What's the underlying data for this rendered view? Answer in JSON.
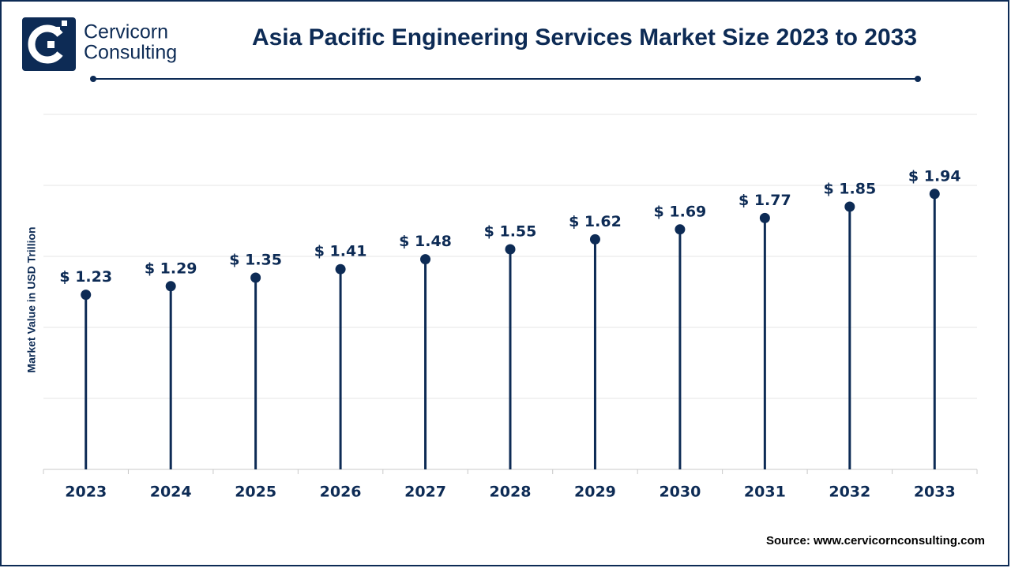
{
  "brand": [
    "Cervicorn",
    "Consulting"
  ],
  "source": "Source: www.cervicornconsulting.com",
  "chart_data": {
    "type": "lollipop",
    "title": "Asia Pacific Engineering Services Market Size 2023 to 2033",
    "y_label": "Market Value in USD Trillion",
    "categories": [
      "2023",
      "2024",
      "2025",
      "2026",
      "2027",
      "2028",
      "2029",
      "2030",
      "2031",
      "2032",
      "2033"
    ],
    "values": [
      1.23,
      1.29,
      1.35,
      1.41,
      1.48,
      1.55,
      1.62,
      1.69,
      1.77,
      1.85,
      1.94
    ],
    "value_labels": [
      "$ 1.23",
      "$ 1.29",
      "$ 1.35",
      "$ 1.41",
      "$ 1.48",
      "$ 1.55",
      "$ 1.62",
      "$ 1.69",
      "$ 1.77",
      "$ 1.85",
      "$ 1.94"
    ],
    "color": "#0d2b55",
    "ylim": [
      0,
      2.5
    ],
    "yticks": [
      0,
      0.5,
      1,
      1.5,
      2,
      2.5
    ],
    "grid": true
  }
}
